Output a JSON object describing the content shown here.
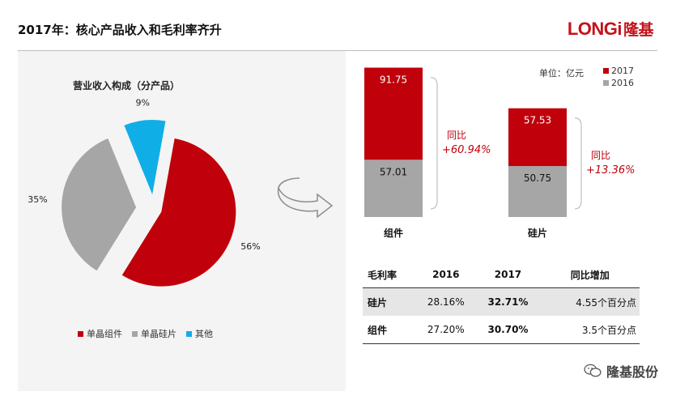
{
  "header": {
    "title": "2017年：核心产品收入和毛利率齐升",
    "logo_latin": "LONGi",
    "logo_cjk": "隆基"
  },
  "watermark": {
    "text": "隆基股份",
    "icon": "wechat-icon"
  },
  "colors": {
    "red": "#c0000a",
    "gray": "#a6a6a6",
    "cyan": "#10aee6"
  },
  "chart_data": [
    {
      "type": "pie",
      "title": "营业收入构成（分产品）",
      "slices": [
        {
          "name": "单晶组件",
          "value": 56,
          "label": "56%",
          "color": "#c0000a"
        },
        {
          "name": "单晶硅片",
          "value": 35,
          "label": "35%",
          "color": "#a6a6a6"
        },
        {
          "name": "其他",
          "value": 9,
          "label": "9%",
          "color": "#10aee6"
        }
      ],
      "legend": "bottom"
    },
    {
      "type": "bar",
      "stacked": true,
      "unit": "单位：亿元",
      "categories": [
        "组件",
        "硅片"
      ],
      "series": [
        {
          "name": "2016",
          "color": "#a6a6a6",
          "values": [
            57.01,
            50.75
          ],
          "labels": [
            "57.01",
            "50.75"
          ]
        },
        {
          "name": "2017",
          "color": "#c0000a",
          "values": [
            91.75,
            57.53
          ],
          "labels": [
            "91.75",
            "57.53"
          ]
        }
      ],
      "yoy": [
        {
          "label": "同比",
          "value": "+60.94%"
        },
        {
          "label": "同比",
          "value": "+13.36%"
        }
      ],
      "legend": "top-right"
    }
  ],
  "margin_table": {
    "headers": [
      "毛利率",
      "2016",
      "2017",
      "同比增加"
    ],
    "rows": [
      {
        "name": "硅片",
        "v2016": "28.16%",
        "v2017": "32.71%",
        "change": "4.55个百分点"
      },
      {
        "name": "组件",
        "v2016": "27.20%",
        "v2017": "30.70%",
        "change": "3.5个百分点"
      }
    ]
  }
}
